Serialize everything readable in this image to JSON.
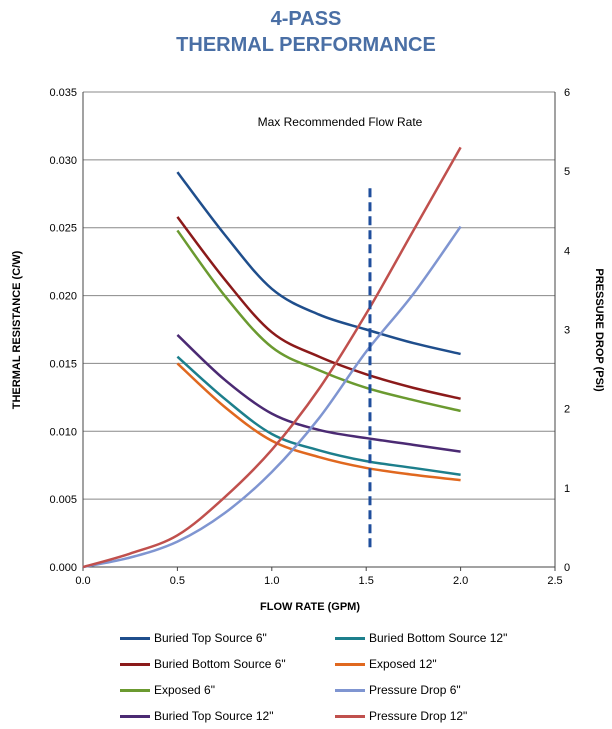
{
  "title_line1": "4-PASS",
  "title_line2": "THERMAL PERFORMANCE",
  "chart_data": {
    "type": "line",
    "xlabel": "FLOW RATE (GPM)",
    "ylabel": "THERMAL RESISTANCE (C/W)",
    "y2label": "PRESSURE DROP (PSI)",
    "xlim": [
      0,
      2.5
    ],
    "ylim": [
      0,
      0.035
    ],
    "y2lim": [
      0,
      6
    ],
    "x_ticks": [
      "0.0",
      "0.5",
      "1.0",
      "1.5",
      "2.0",
      "2.5"
    ],
    "y_ticks": [
      "0.000",
      "0.005",
      "0.010",
      "0.015",
      "0.020",
      "0.025",
      "0.030",
      "0.035"
    ],
    "y2_ticks": [
      "0",
      "1",
      "2",
      "3",
      "4",
      "5",
      "6"
    ],
    "grid": true,
    "annotation": "Max Recommended Flow Rate",
    "max_flow_line": {
      "x": 1.52,
      "y2_range": [
        0.25,
        4.8
      ],
      "color": "#1f4e9c"
    },
    "legend_position": "bottom",
    "series": [
      {
        "name": "Buried Top Source 6\"",
        "axis": "left",
        "color": "#1f4e8c",
        "x": [
          0.5,
          0.75,
          1.0,
          1.25,
          1.5,
          1.75,
          2.0
        ],
        "y": [
          0.0291,
          0.0245,
          0.0205,
          0.0186,
          0.0175,
          0.0165,
          0.0157
        ]
      },
      {
        "name": "Buried Bottom Source 6\"",
        "axis": "left",
        "color": "#8b1a1a",
        "x": [
          0.5,
          0.75,
          1.0,
          1.25,
          1.5,
          1.75,
          2.0
        ],
        "y": [
          0.0258,
          0.0212,
          0.0173,
          0.0155,
          0.0142,
          0.0132,
          0.0124
        ]
      },
      {
        "name": "Exposed 6\"",
        "axis": "left",
        "color": "#6b9a30",
        "x": [
          0.5,
          0.75,
          1.0,
          1.25,
          1.5,
          1.75,
          2.0
        ],
        "y": [
          0.0248,
          0.02,
          0.0162,
          0.0145,
          0.0132,
          0.0123,
          0.0115
        ]
      },
      {
        "name": "Buried Top Source 12\"",
        "axis": "left",
        "color": "#4b2a73",
        "x": [
          0.5,
          0.75,
          1.0,
          1.25,
          1.5,
          1.75,
          2.0
        ],
        "y": [
          0.0171,
          0.0138,
          0.0113,
          0.0101,
          0.0095,
          0.009,
          0.0085
        ]
      },
      {
        "name": "Buried Bottom Source 12\"",
        "axis": "left",
        "color": "#1d7f8c",
        "x": [
          0.5,
          0.75,
          1.0,
          1.25,
          1.5,
          1.75,
          2.0
        ],
        "y": [
          0.0155,
          0.0124,
          0.0098,
          0.0086,
          0.0078,
          0.0073,
          0.0068
        ]
      },
      {
        "name": "Exposed 12\"",
        "axis": "left",
        "color": "#e0681f",
        "x": [
          0.5,
          0.75,
          1.0,
          1.25,
          1.5,
          1.75,
          2.0
        ],
        "y": [
          0.015,
          0.0118,
          0.0093,
          0.0081,
          0.0073,
          0.0068,
          0.0064
        ]
      },
      {
        "name": "Pressure Drop 6\"",
        "axis": "right",
        "color": "#7f95d1",
        "x": [
          0.0,
          0.25,
          0.5,
          0.75,
          1.0,
          1.25,
          1.5,
          1.75,
          2.0
        ],
        "y": [
          0.0,
          0.12,
          0.32,
          0.68,
          1.2,
          1.88,
          2.72,
          3.45,
          4.3
        ]
      },
      {
        "name": "Pressure Drop 12\"",
        "axis": "right",
        "color": "#c0504d",
        "x": [
          0.0,
          0.25,
          0.5,
          0.75,
          1.0,
          1.25,
          1.5,
          1.75,
          2.0
        ],
        "y": [
          0.0,
          0.17,
          0.4,
          0.88,
          1.48,
          2.25,
          3.2,
          4.25,
          5.3
        ]
      }
    ]
  },
  "legend_order": [
    [
      "Buried Top Source 6\"",
      "Buried Bottom Source 12\""
    ],
    [
      "Buried Bottom Source 6\"",
      "Exposed 12\""
    ],
    [
      "Exposed 6\"",
      "Pressure Drop 6\""
    ],
    [
      "Buried Top Source 12\"",
      "Pressure Drop 12\""
    ]
  ]
}
